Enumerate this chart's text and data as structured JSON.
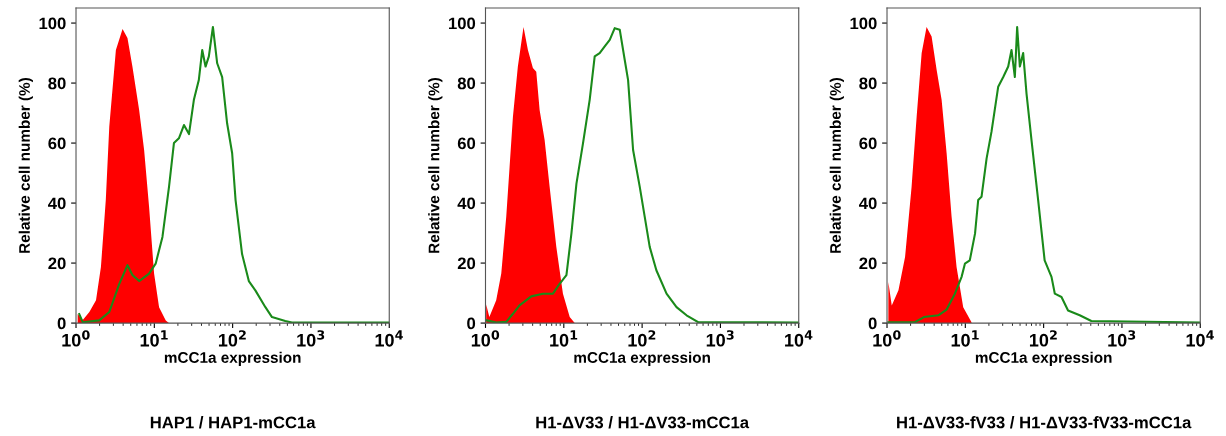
{
  "chart_data": [
    {
      "type": "line",
      "title": "HAP1 / HAP1-mCC1a",
      "xlabel": "mCC1a expression",
      "ylabel": "Relative cell number (%)",
      "log": "x",
      "xlim": [
        1,
        10000
      ],
      "ylim": [
        0,
        105
      ],
      "xticks": [
        {
          "value": 1,
          "label": "10$^{0}$"
        },
        {
          "value": 10,
          "label": "10$^{1}$"
        },
        {
          "value": 100,
          "label": "10$^{2}$"
        },
        {
          "value": 1000,
          "label": "10$^{3}$"
        },
        {
          "value": 10000,
          "label": "10$^{4}$"
        }
      ],
      "yticks": [
        0,
        20,
        40,
        60,
        80,
        100
      ],
      "grid": false,
      "legend": false,
      "series": [
        {
          "type": "area",
          "color": "#ff0000",
          "x": [
            1.05,
            1.22,
            1.48,
            1.8,
            2.08,
            2.4,
            2.66,
            3.23,
            3.93,
            4.54,
            5.25,
            6.4,
            7.41,
            8.57,
            9.93,
            11.5,
            14,
            15.4
          ],
          "values": [
            3,
            1,
            3.7,
            7.6,
            18.7,
            41,
            65.5,
            91,
            98,
            95,
            85.5,
            71,
            57.7,
            38.8,
            16.5,
            5.3,
            0.9,
            0
          ]
        },
        {
          "color": "#1a8a1a",
          "x": [
            1.1,
            1.22,
            1.98,
            2.66,
            3.56,
            4.54,
            5.25,
            6.4,
            8.57,
            10.4,
            12.7,
            15.4,
            17.8,
            20.6,
            23.9,
            27.7,
            32,
            37,
            40.9,
            45.1,
            49.7,
            56,
            63.5,
            73.5,
            85,
            98.6,
            109,
            132,
            161,
            195,
            262,
            318,
            470,
            572,
            10000
          ],
          "values": [
            3,
            0.3,
            0.9,
            3.7,
            13,
            19.3,
            16,
            14,
            16.5,
            19.8,
            28.7,
            45.4,
            60,
            61.6,
            66,
            63,
            74.4,
            81,
            91,
            85.5,
            88.9,
            98.7,
            86.6,
            82,
            66.6,
            56.6,
            41,
            23,
            14,
            10.9,
            5.3,
            2,
            0.7,
            0.2,
            0.2
          ]
        }
      ]
    },
    {
      "type": "line",
      "title": "H1-ΔV33 / H1-ΔV33-mCC1a",
      "xlabel": "mCC1a expression",
      "ylabel": "Relative cell number (%)",
      "log": "x",
      "xlim": [
        1,
        10000
      ],
      "ylim": [
        0,
        105
      ],
      "xticks": [
        {
          "value": 1,
          "label": "10$^{0}$"
        },
        {
          "value": 10,
          "label": "10$^{1}$"
        },
        {
          "value": 100,
          "label": "10$^{2}$"
        },
        {
          "value": 1000,
          "label": "10$^{3}$"
        },
        {
          "value": 10000,
          "label": "10$^{4}$"
        }
      ],
      "yticks": [
        0,
        20,
        40,
        60,
        80,
        100
      ],
      "grid": false,
      "legend": false,
      "series": [
        {
          "type": "area",
          "color": "#ff0000",
          "x": [
            1.02,
            1.12,
            1.37,
            1.59,
            1.84,
            2.03,
            2.24,
            2.59,
            3.06,
            3.48,
            4.03,
            4.45,
            4.91,
            5.69,
            6.59,
            8.02,
            9.75,
            11.9,
            13.8
          ],
          "values": [
            6.2,
            2,
            7.6,
            16.5,
            35.4,
            52,
            68.8,
            85.5,
            98.7,
            91,
            85,
            83.8,
            71,
            61,
            45.4,
            25.4,
            9.8,
            2,
            0
          ]
        },
        {
          "color": "#1a8a1a",
          "x": [
            1.04,
            1.37,
            1.84,
            2.24,
            2.72,
            3.84,
            5.41,
            7.27,
            8.84,
            10.8,
            12.5,
            14.5,
            17.6,
            21.4,
            24.8,
            28.7,
            33.3,
            38.6,
            44.7,
            51.8,
            60,
            66.2,
            76.7,
            93.3,
            108,
            125,
            152,
            205,
            275,
            369,
            520,
            10000
          ],
          "values": [
            0.9,
            0.2,
            0.4,
            3.1,
            5.9,
            8.9,
            9.8,
            9.8,
            13.1,
            16,
            29.8,
            46.5,
            60,
            74.4,
            88.9,
            90,
            92.2,
            94.4,
            98.3,
            97.8,
            87.7,
            81,
            57.7,
            45.4,
            35.4,
            25.4,
            17.6,
            9.8,
            5.3,
            2.6,
            0.3,
            0.2
          ]
        }
      ]
    },
    {
      "type": "line",
      "title": "H1-ΔV33-fV33 / H1-ΔV33-fV33-mCC1a",
      "xlabel": "mCC1a expression",
      "ylabel": "Relative cell number (%)",
      "log": "x",
      "xlim": [
        1,
        10000
      ],
      "ylim": [
        0,
        105
      ],
      "xticks": [
        {
          "value": 1,
          "label": "10$^{0}$"
        },
        {
          "value": 10,
          "label": "10$^{1}$"
        },
        {
          "value": 100,
          "label": "10$^{2}$"
        },
        {
          "value": 1000,
          "label": "10$^{3}$"
        },
        {
          "value": 10000,
          "label": "10$^{4}$"
        }
      ],
      "yticks": [
        0,
        20,
        40,
        60,
        80,
        100
      ],
      "grid": false,
      "legend": false,
      "series": [
        {
          "type": "area",
          "color": "#ff0000",
          "x": [
            1.04,
            1.15,
            1.4,
            1.7,
            2.06,
            2.39,
            2.77,
            3.2,
            3.71,
            4.3,
            4.98,
            5.77,
            6.68,
            7.73,
            9.4,
            12
          ],
          "values": [
            13.7,
            5.9,
            10.9,
            22,
            45.4,
            68.8,
            90,
            98.7,
            95.5,
            84.4,
            74.4,
            56.6,
            35.4,
            18.7,
            5.3,
            0.3
          ]
        },
        {
          "color": "#1a8a1a",
          "x": [
            1.04,
            2.27,
            2.96,
            4.52,
            5.77,
            7.36,
            8.96,
            9.88,
            11.4,
            13.3,
            14.6,
            16.1,
            18.7,
            21.6,
            26.3,
            30.5,
            35.3,
            38.9,
            42.9,
            45.9,
            49.7,
            54.8,
            60.4,
            70,
            85.1,
            103,
            126,
            139,
            169,
            205,
            289,
            407,
            10000
          ],
          "values": [
            0.3,
            0.3,
            2,
            2.6,
            4.5,
            9.8,
            15.4,
            19.8,
            20.9,
            29.8,
            41,
            42.1,
            54.9,
            63.8,
            78.8,
            82,
            85.5,
            91,
            82,
            98.7,
            85.5,
            90,
            76.6,
            61,
            41,
            20.9,
            15.4,
            9.8,
            8.7,
            4.2,
            2.6,
            0.7,
            0.2
          ]
        }
      ]
    }
  ]
}
